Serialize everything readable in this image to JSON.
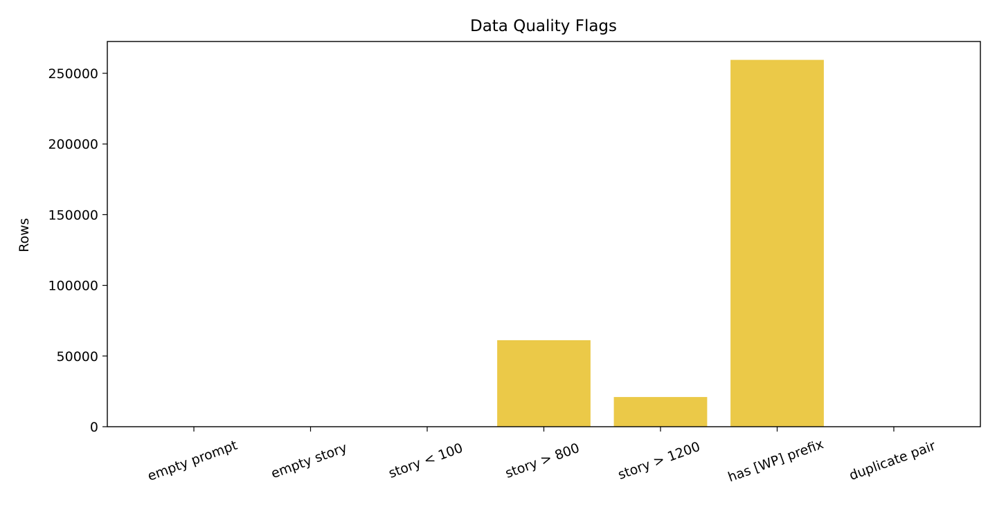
{
  "chart_data": {
    "type": "bar",
    "title": "Data Quality Flags",
    "ylabel": "Rows",
    "categories": [
      "empty prompt",
      "empty story",
      "story < 100",
      "story > 800",
      "story > 1200",
      "has [WP] prefix",
      "duplicate pair"
    ],
    "values": [
      0,
      0,
      0,
      61200,
      21000,
      259500,
      0
    ],
    "color": "#ebc948",
    "ylim": [
      0,
      272500
    ],
    "yticks": [
      0,
      50000,
      100000,
      150000,
      200000,
      250000
    ],
    "grid": false
  }
}
